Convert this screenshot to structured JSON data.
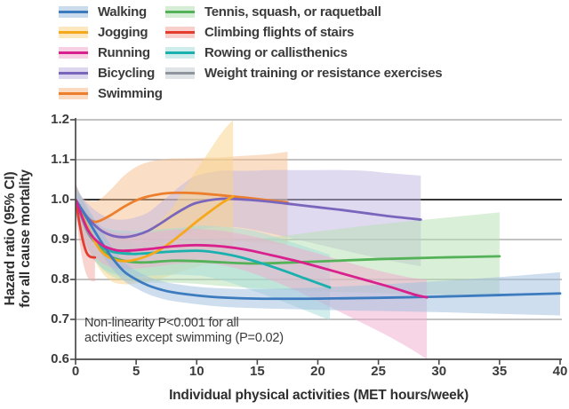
{
  "chart_data": {
    "type": "line",
    "title": "",
    "xlabel": "Individual physical activities (MET hours/week)",
    "ylabel": "Hazard ratio (95% CI) for all cause mortality",
    "ylabel_lines": [
      "Hazard ratio (95% CI)",
      "for all cause mortality"
    ],
    "annotation_lines": [
      "Non-linearity P<0.001 for all",
      "activities except swimming (P=0.02)"
    ],
    "xlim": [
      0,
      40
    ],
    "ylim": [
      0.6,
      1.2
    ],
    "xticks": [
      0,
      5,
      10,
      15,
      20,
      25,
      30,
      35,
      40
    ],
    "yticks": [
      0.6,
      0.7,
      0.8,
      0.9,
      1.0,
      1.1,
      1.2
    ],
    "reference_line": 1.0,
    "grid": true,
    "legend_position": "top",
    "series": [
      {
        "name": "Walking",
        "color": "#3d7bbf",
        "band_color": "#9dbede",
        "x": [
          0,
          1,
          2,
          3,
          4,
          5,
          6,
          7,
          8,
          10,
          12,
          15,
          20,
          25,
          30,
          35,
          40
        ],
        "y": [
          1.0,
          0.95,
          0.9,
          0.855,
          0.82,
          0.8,
          0.785,
          0.775,
          0.768,
          0.76,
          0.755,
          0.752,
          0.752,
          0.754,
          0.757,
          0.761,
          0.765
        ],
        "lo": [
          0.97,
          0.92,
          0.87,
          0.828,
          0.796,
          0.778,
          0.763,
          0.753,
          0.746,
          0.738,
          0.732,
          0.728,
          0.724,
          0.721,
          0.718,
          0.714,
          0.71
        ],
        "hi": [
          1.03,
          0.98,
          0.93,
          0.882,
          0.844,
          0.822,
          0.807,
          0.797,
          0.79,
          0.782,
          0.778,
          0.776,
          0.78,
          0.787,
          0.796,
          0.806,
          0.818
        ]
      },
      {
        "name": "Jogging",
        "color": "#f6a81c",
        "band_color": "#fad389",
        "x": [
          0,
          1,
          2,
          3,
          4,
          5,
          6,
          7,
          8,
          9,
          10,
          11,
          12,
          13
        ],
        "y": [
          1.0,
          0.93,
          0.875,
          0.852,
          0.846,
          0.85,
          0.86,
          0.875,
          0.896,
          0.92,
          0.945,
          0.968,
          0.99,
          1.008
        ],
        "lo": [
          0.96,
          0.885,
          0.825,
          0.795,
          0.788,
          0.79,
          0.795,
          0.802,
          0.812,
          0.822,
          0.832,
          0.84,
          0.846,
          0.85
        ],
        "hi": [
          1.04,
          0.975,
          0.925,
          0.909,
          0.904,
          0.91,
          0.925,
          0.948,
          0.98,
          1.03,
          1.075,
          1.12,
          1.165,
          1.2
        ]
      },
      {
        "name": "Running",
        "color": "#d9218e",
        "band_color": "#f0a9cd",
        "x": [
          0,
          1,
          2,
          3,
          4,
          6,
          8,
          10,
          12,
          14,
          16,
          18,
          20,
          22,
          24,
          26,
          28,
          29
        ],
        "y": [
          1.0,
          0.925,
          0.89,
          0.876,
          0.872,
          0.876,
          0.883,
          0.886,
          0.883,
          0.875,
          0.862,
          0.848,
          0.832,
          0.815,
          0.798,
          0.781,
          0.762,
          0.755
        ],
        "lo": [
          0.96,
          0.88,
          0.845,
          0.83,
          0.826,
          0.83,
          0.838,
          0.842,
          0.836,
          0.822,
          0.8,
          0.775,
          0.746,
          0.716,
          0.686,
          0.655,
          0.62,
          0.6
        ],
        "hi": [
          1.04,
          0.97,
          0.935,
          0.92,
          0.916,
          0.918,
          0.924,
          0.926,
          0.922,
          0.912,
          0.898,
          0.882,
          0.865,
          0.847,
          0.83,
          0.815,
          0.803,
          0.8
        ]
      },
      {
        "name": "Bicycling",
        "color": "#7a65bd",
        "band_color": "#c0b6e0",
        "x": [
          0,
          1,
          2,
          3,
          4,
          5,
          6,
          7,
          8,
          9,
          10,
          12,
          14,
          16,
          18,
          20,
          22,
          24,
          26,
          28.5
        ],
        "y": [
          1.0,
          0.955,
          0.925,
          0.91,
          0.906,
          0.911,
          0.922,
          0.94,
          0.96,
          0.978,
          0.992,
          1.002,
          1.0,
          0.995,
          0.988,
          0.981,
          0.974,
          0.966,
          0.958,
          0.95
        ],
        "lo": [
          0.97,
          0.92,
          0.885,
          0.868,
          0.862,
          0.866,
          0.876,
          0.888,
          0.902,
          0.914,
          0.924,
          0.932,
          0.928,
          0.916,
          0.902,
          0.888,
          0.874,
          0.86,
          0.847,
          0.833
        ],
        "hi": [
          1.03,
          0.99,
          0.965,
          0.952,
          0.95,
          0.956,
          0.968,
          0.992,
          1.018,
          1.042,
          1.06,
          1.072,
          1.072,
          1.074,
          1.074,
          1.074,
          1.074,
          1.072,
          1.066,
          1.06
        ]
      },
      {
        "name": "Swimming",
        "color": "#ec7e2c",
        "band_color": "#f6bd8e",
        "x": [
          0,
          0.5,
          1,
          1.5,
          2,
          3,
          4,
          5,
          6,
          7,
          8,
          10,
          12,
          14,
          16,
          17.5
        ],
        "y": [
          1.0,
          0.974,
          0.954,
          0.945,
          0.947,
          0.963,
          0.982,
          0.998,
          1.008,
          1.014,
          1.017,
          1.016,
          1.011,
          1.005,
          0.998,
          0.993
        ],
        "lo": [
          0.96,
          0.925,
          0.898,
          0.885,
          0.882,
          0.886,
          0.893,
          0.898,
          0.903,
          0.906,
          0.907,
          0.904,
          0.899,
          0.894,
          0.889,
          0.885
        ],
        "hi": [
          1.04,
          1.005,
          0.998,
          0.996,
          1.0,
          1.028,
          1.06,
          1.082,
          1.094,
          1.1,
          1.103,
          1.104,
          1.106,
          1.11,
          1.114,
          1.12
        ]
      },
      {
        "name": "Tennis, squash, or raquetball",
        "color": "#53b257",
        "band_color": "#b5dfb2",
        "x": [
          0,
          1,
          2,
          3,
          4,
          5,
          6,
          8,
          10,
          12,
          15,
          20,
          25,
          30,
          35
        ],
        "y": [
          1.0,
          0.93,
          0.88,
          0.856,
          0.847,
          0.843,
          0.843,
          0.847,
          0.846,
          0.843,
          0.84,
          0.845,
          0.851,
          0.855,
          0.858
        ],
        "lo": [
          0.96,
          0.888,
          0.833,
          0.808,
          0.798,
          0.794,
          0.792,
          0.792,
          0.789,
          0.784,
          0.778,
          0.77,
          0.766,
          0.761,
          0.757
        ],
        "hi": [
          1.04,
          0.972,
          0.927,
          0.904,
          0.896,
          0.892,
          0.894,
          0.902,
          0.903,
          0.902,
          0.902,
          0.92,
          0.938,
          0.953,
          0.968
        ]
      },
      {
        "name": "Climbing flights of stairs",
        "color": "#e43d30",
        "band_color": "#f3a8a0",
        "x": [
          0,
          0.3,
          0.6,
          0.9,
          1.2,
          1.6
        ],
        "y": [
          1.0,
          0.945,
          0.898,
          0.868,
          0.857,
          0.855
        ],
        "lo": [
          0.97,
          0.898,
          0.845,
          0.812,
          0.798,
          0.795
        ],
        "hi": [
          1.03,
          0.992,
          0.951,
          0.924,
          0.916,
          0.915
        ]
      },
      {
        "name": "Rowing or callisthenics",
        "color": "#19b0ad",
        "band_color": "#a4dcda",
        "x": [
          0,
          1,
          2,
          3,
          4,
          5,
          6,
          8,
          10,
          11,
          13,
          15,
          17,
          19,
          21
        ],
        "y": [
          1.0,
          0.925,
          0.885,
          0.87,
          0.865,
          0.864,
          0.866,
          0.87,
          0.872,
          0.87,
          0.86,
          0.844,
          0.824,
          0.802,
          0.78
        ],
        "lo": [
          0.96,
          0.878,
          0.833,
          0.815,
          0.809,
          0.807,
          0.809,
          0.812,
          0.81,
          0.806,
          0.79,
          0.768,
          0.746,
          0.722,
          0.698
        ],
        "hi": [
          1.04,
          0.972,
          0.937,
          0.925,
          0.921,
          0.921,
          0.923,
          0.928,
          0.934,
          0.934,
          0.93,
          0.92,
          0.902,
          0.882,
          0.862
        ]
      },
      {
        "name": "Weight training or resistance exercises",
        "color": "#8f959c",
        "band_color": "#c9cdd2",
        "x": [
          0,
          1,
          2,
          3,
          4.5
        ],
        "y": [
          1.0,
          0.918,
          0.884,
          0.871,
          0.867
        ],
        "lo": [
          0.96,
          0.872,
          0.834,
          0.818,
          0.812
        ],
        "hi": [
          1.04,
          0.964,
          0.934,
          0.924,
          0.922
        ]
      }
    ]
  }
}
